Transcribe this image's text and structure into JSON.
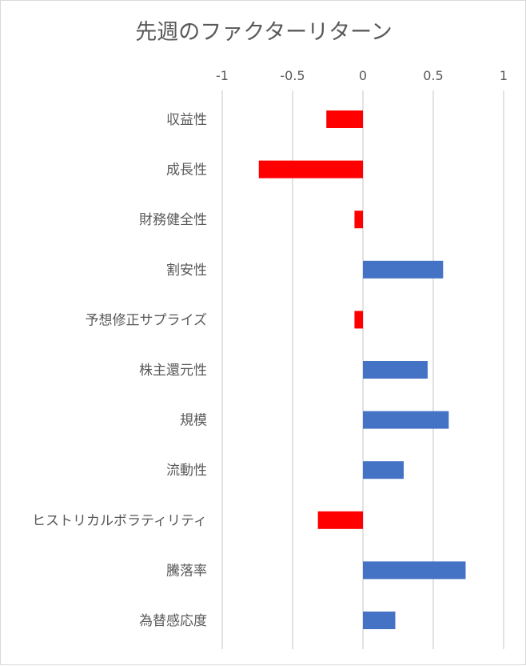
{
  "chart_data": {
    "type": "bar",
    "orientation": "horizontal",
    "title": "先週のファクターリターン",
    "categories": [
      "収益性",
      "成長性",
      "財務健全性",
      "割安性",
      "予想修正サプライズ",
      "株主還元性",
      "規模",
      "流動性",
      "ヒストリカルボラティリティ",
      "騰落率",
      "為替感応度"
    ],
    "values": [
      -0.26,
      -0.74,
      -0.06,
      0.57,
      -0.06,
      0.46,
      0.61,
      0.29,
      -0.32,
      0.73,
      0.23
    ],
    "xlim": [
      -1,
      1
    ],
    "xticks": [
      -1,
      -0.5,
      0,
      0.5,
      1
    ],
    "xtick_labels": [
      "-1",
      "-0.5",
      "0",
      "0.5",
      "1"
    ],
    "axis_position": "top",
    "grid": true,
    "legend": "none",
    "colors": {
      "positive": "#4472c4",
      "negative": "#ff0000",
      "gridline": "#d9d9d9",
      "text": "#595959"
    }
  }
}
